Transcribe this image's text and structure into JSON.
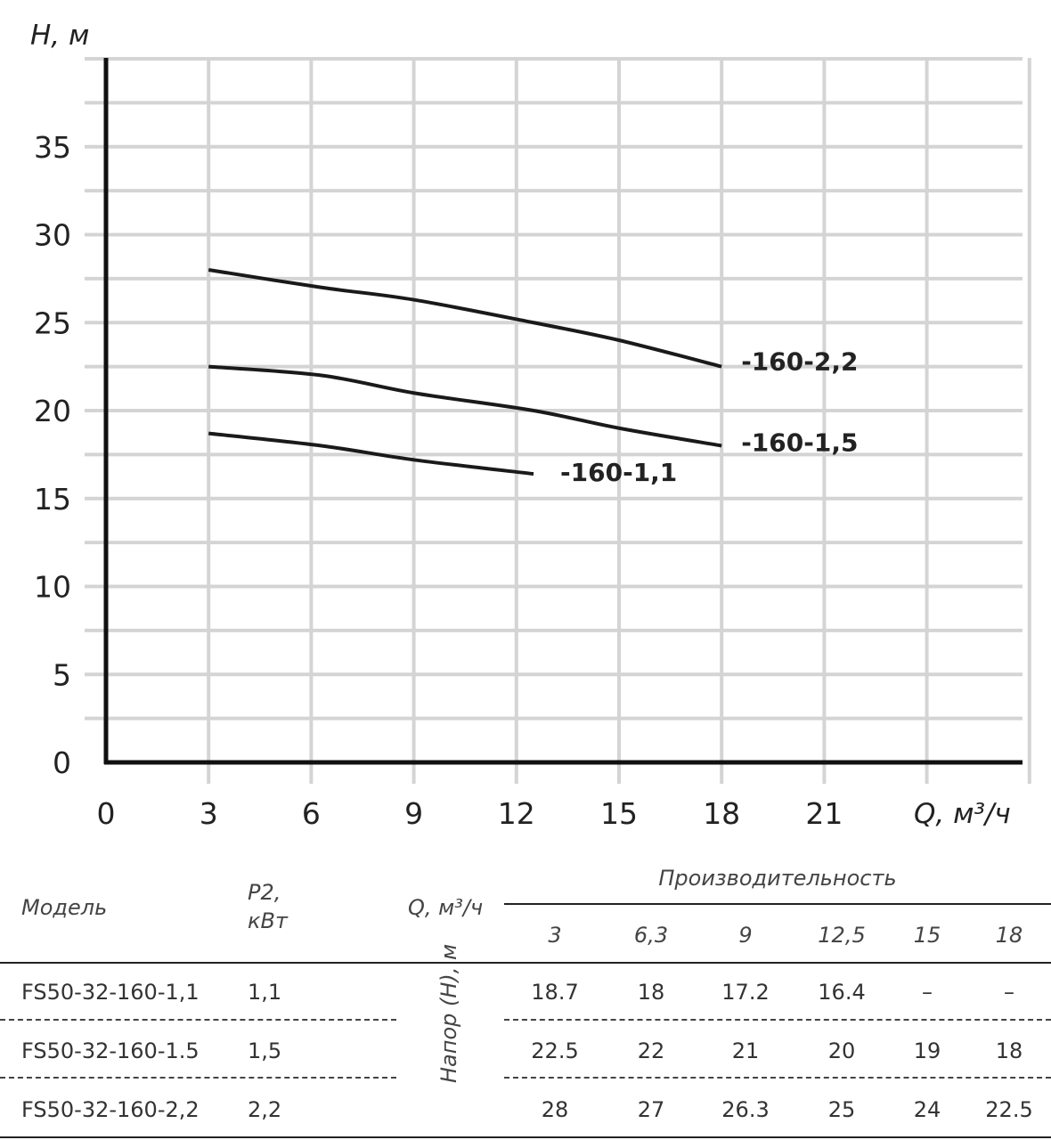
{
  "chart_data": {
    "type": "line",
    "xlabel": "Q, м³/ч",
    "ylabel": "H, м",
    "xlim": [
      0,
      27
    ],
    "ylim": [
      0,
      40
    ],
    "x_ticks": [
      "0",
      "3",
      "6",
      "9",
      "12",
      "15",
      "18",
      "21"
    ],
    "y_ticks": [
      "0",
      "5",
      "10",
      "15",
      "20",
      "25",
      "30",
      "35"
    ],
    "grid": true,
    "series": [
      {
        "name": "-160-2,2",
        "x": [
          3,
          6.3,
          9,
          12.5,
          15,
          18
        ],
        "y": [
          28,
          27,
          26.3,
          25,
          24,
          22.5
        ]
      },
      {
        "name": "-160-1,5",
        "x": [
          3,
          6.3,
          9,
          12.5,
          15,
          18
        ],
        "y": [
          22.5,
          22,
          21,
          20,
          19,
          18
        ]
      },
      {
        "name": "-160-1,1",
        "x": [
          3,
          6.3,
          9,
          12.5
        ],
        "y": [
          18.7,
          18,
          17.2,
          16.4
        ]
      }
    ]
  },
  "table": {
    "col_model": "Модель",
    "col_power_line1": "P2,",
    "col_power_line2": "кВт",
    "col_q": "Q, м³/ч",
    "col_group": "Производительность",
    "row_axis_label": "Напор (Н), м",
    "q_values": [
      "3",
      "6,3",
      "9",
      "12,5",
      "15",
      "18"
    ],
    "rows": [
      {
        "model": "FS50-32-160-1,1",
        "power": "1,1",
        "values": [
          "18.7",
          "18",
          "17.2",
          "16.4",
          "–",
          "–"
        ]
      },
      {
        "model": "FS50-32-160-1.5",
        "power": "1,5",
        "values": [
          "22.5",
          "22",
          "21",
          "20",
          "19",
          "18"
        ]
      },
      {
        "model": "FS50-32-160-2,2",
        "power": "2,2",
        "values": [
          "28",
          "27",
          "26.3",
          "25",
          "24",
          "22.5"
        ]
      }
    ]
  }
}
